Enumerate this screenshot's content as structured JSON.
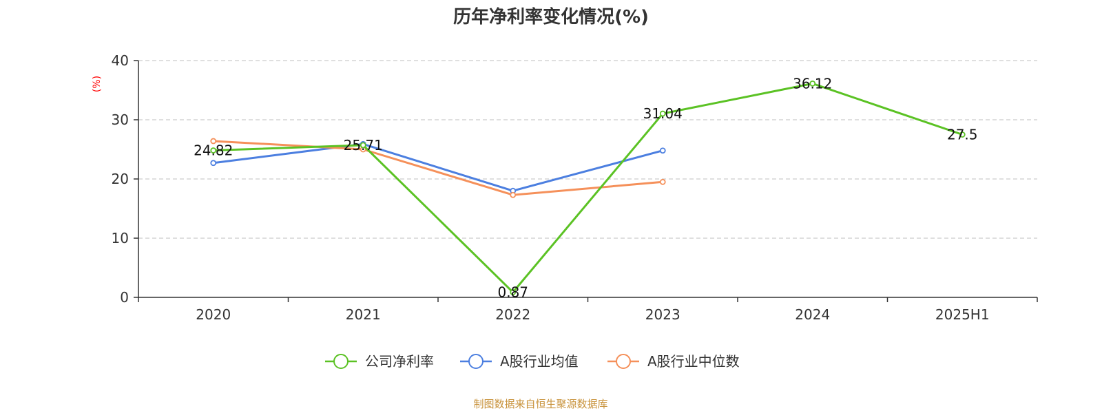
{
  "chart_data": {
    "type": "line",
    "title": "历年净利率变化情况(%)",
    "ylabel": "(%)",
    "ylim": [
      0,
      40
    ],
    "yticks": [
      0,
      10,
      20,
      30,
      40
    ],
    "categories": [
      "2020",
      "2021",
      "2022",
      "2023",
      "2024",
      "2025H1"
    ],
    "grid": true,
    "legend_position": "bottom",
    "series": [
      {
        "name": "公司净利率",
        "color": "#5bc224",
        "values": [
          24.82,
          25.71,
          0.87,
          31.04,
          36.12,
          27.5
        ],
        "labels": [
          "24.82",
          "25.71",
          "0.87",
          "31.04",
          "36.12",
          "27.5"
        ]
      },
      {
        "name": "A股行业均值",
        "color": "#4c7fe0",
        "values": [
          22.7,
          25.9,
          18.0,
          24.8,
          null,
          null
        ]
      },
      {
        "name": "A股行业中位数",
        "color": "#f5905a",
        "values": [
          26.4,
          25.0,
          17.3,
          19.5,
          null,
          null
        ]
      }
    ]
  },
  "source_note": "制图数据来自恒生聚源数据库",
  "colors": {
    "ylabel": "#ff0000",
    "source": "#c8923a",
    "axis": "#333333",
    "grid": "#cccccc"
  }
}
